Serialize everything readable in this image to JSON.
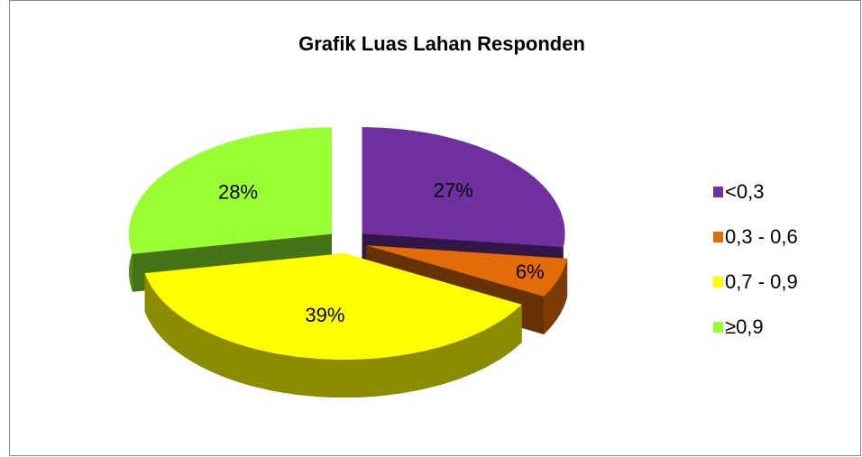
{
  "chart_data": {
    "type": "pie",
    "title": "Grafik Luas Lahan Responden",
    "categories": [
      "<0,3",
      "0,3 -  0,6",
      "0,7 - 0,9",
      "≥0,9"
    ],
    "values": [
      27,
      6,
      39,
      28
    ],
    "value_labels": [
      "27%",
      "6%",
      "39%",
      "28%"
    ],
    "colors": [
      "#7030a0",
      "#e36c09",
      "#ffff00",
      "#99ff33"
    ],
    "legend": "right"
  }
}
